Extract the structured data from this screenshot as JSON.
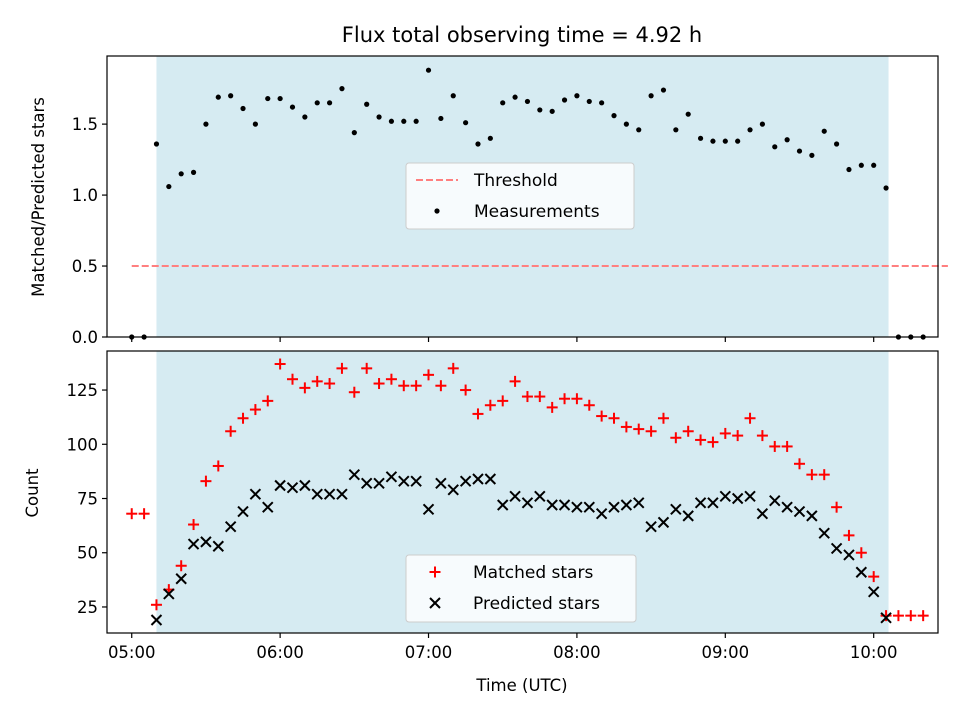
{
  "chart_data": [
    {
      "type": "scatter",
      "title": "Flux total observing time = 4.92 h",
      "ylabel": "Matched/Predicted stars",
      "xlabel": "",
      "xlim": [
        "04:50",
        "10:26"
      ],
      "ylim": [
        0,
        1.98
      ],
      "grid": false,
      "legend_placement": "center",
      "observing_window": [
        "05:10",
        "10:06"
      ],
      "yticks": [
        "0.0",
        "0.5",
        "1.0",
        "1.5"
      ],
      "series": [
        {
          "name": "Threshold",
          "style": "dashed-line",
          "color": "#ff7f7f",
          "x": [
            "05:00",
            "10:30"
          ],
          "y": [
            0.5,
            0.5
          ]
        },
        {
          "name": "Measurements",
          "style": "dot",
          "color": "#000000",
          "x": [
            "05:00",
            "05:05",
            "05:10",
            "05:15",
            "05:20",
            "05:25",
            "05:30",
            "05:35",
            "05:40",
            "05:45",
            "05:50",
            "05:55",
            "06:00",
            "06:05",
            "06:10",
            "06:15",
            "06:20",
            "06:25",
            "06:30",
            "06:35",
            "06:40",
            "06:45",
            "06:50",
            "06:55",
            "07:00",
            "07:05",
            "07:10",
            "07:15",
            "07:20",
            "07:25",
            "07:30",
            "07:35",
            "07:40",
            "07:45",
            "07:50",
            "07:55",
            "08:00",
            "08:05",
            "08:10",
            "08:15",
            "08:20",
            "08:25",
            "08:30",
            "08:35",
            "08:40",
            "08:45",
            "08:50",
            "08:55",
            "09:00",
            "09:05",
            "09:10",
            "09:15",
            "09:20",
            "09:25",
            "09:30",
            "09:35",
            "09:40",
            "09:45",
            "09:50",
            "09:55",
            "10:00",
            "10:05",
            "10:10",
            "10:15",
            "10:20"
          ],
          "y": [
            0.0,
            0.0,
            1.36,
            1.06,
            1.15,
            1.16,
            1.5,
            1.69,
            1.7,
            1.61,
            1.5,
            1.68,
            1.68,
            1.62,
            1.55,
            1.65,
            1.65,
            1.75,
            1.44,
            1.64,
            1.55,
            1.52,
            1.52,
            1.52,
            1.88,
            1.54,
            1.7,
            1.51,
            1.36,
            1.4,
            1.65,
            1.69,
            1.66,
            1.6,
            1.59,
            1.67,
            1.7,
            1.66,
            1.65,
            1.56,
            1.5,
            1.46,
            1.7,
            1.74,
            1.46,
            1.57,
            1.4,
            1.38,
            1.38,
            1.38,
            1.46,
            1.5,
            1.34,
            1.39,
            1.31,
            1.28,
            1.45,
            1.36,
            1.18,
            1.21,
            1.21,
            1.05,
            0.0,
            0.0,
            0.0
          ]
        }
      ]
    },
    {
      "type": "scatter",
      "title": "",
      "ylabel": "Count",
      "xlabel": "Time (UTC)",
      "xlim": [
        "04:50",
        "10:26"
      ],
      "ylim": [
        13,
        143
      ],
      "grid": false,
      "legend_placement": "bottom-center",
      "observing_window": [
        "05:10",
        "10:06"
      ],
      "yticks": [
        "25",
        "50",
        "75",
        "100",
        "125"
      ],
      "xticks": [
        "05:00",
        "06:00",
        "07:00",
        "08:00",
        "09:00",
        "10:00"
      ],
      "series": [
        {
          "name": "Matched stars",
          "marker": "+",
          "color": "#ff0000",
          "x": [
            "05:00",
            "05:05",
            "05:10",
            "05:15",
            "05:20",
            "05:25",
            "05:30",
            "05:35",
            "05:40",
            "05:45",
            "05:50",
            "05:55",
            "06:00",
            "06:05",
            "06:10",
            "06:15",
            "06:20",
            "06:25",
            "06:30",
            "06:35",
            "06:40",
            "06:45",
            "06:50",
            "06:55",
            "07:00",
            "07:05",
            "07:10",
            "07:15",
            "07:20",
            "07:25",
            "07:30",
            "07:35",
            "07:40",
            "07:45",
            "07:50",
            "07:55",
            "08:00",
            "08:05",
            "08:10",
            "08:15",
            "08:20",
            "08:25",
            "08:30",
            "08:35",
            "08:40",
            "08:45",
            "08:50",
            "08:55",
            "09:00",
            "09:05",
            "09:10",
            "09:15",
            "09:20",
            "09:25",
            "09:30",
            "09:35",
            "09:40",
            "09:45",
            "09:50",
            "09:55",
            "10:00",
            "10:05",
            "10:10",
            "10:15",
            "10:20"
          ],
          "y": [
            68,
            68,
            26,
            33,
            44,
            63,
            83,
            90,
            106,
            112,
            116,
            120,
            137,
            130,
            126,
            129,
            128,
            135,
            124,
            135,
            128,
            130,
            127,
            127,
            132,
            127,
            135,
            125,
            114,
            118,
            120,
            129,
            122,
            122,
            117,
            121,
            121,
            118,
            113,
            112,
            108,
            107,
            106,
            112,
            103,
            106,
            102,
            101,
            105,
            104,
            112,
            104,
            99,
            99,
            91,
            86,
            86,
            71,
            58,
            50,
            39,
            21,
            21,
            21,
            21
          ]
        },
        {
          "name": "Predicted stars",
          "marker": "x",
          "color": "#000000",
          "x": [
            "05:10",
            "05:15",
            "05:20",
            "05:25",
            "05:30",
            "05:35",
            "05:40",
            "05:45",
            "05:50",
            "05:55",
            "06:00",
            "06:05",
            "06:10",
            "06:15",
            "06:20",
            "06:25",
            "06:30",
            "06:35",
            "06:40",
            "06:45",
            "06:50",
            "06:55",
            "07:00",
            "07:05",
            "07:10",
            "07:15",
            "07:20",
            "07:25",
            "07:30",
            "07:35",
            "07:40",
            "07:45",
            "07:50",
            "07:55",
            "08:00",
            "08:05",
            "08:10",
            "08:15",
            "08:20",
            "08:25",
            "08:30",
            "08:35",
            "08:40",
            "08:45",
            "08:50",
            "08:55",
            "09:00",
            "09:05",
            "09:10",
            "09:15",
            "09:20",
            "09:25",
            "09:30",
            "09:35",
            "09:40",
            "09:45",
            "09:50",
            "09:55",
            "10:00",
            "10:05"
          ],
          "y": [
            19,
            31,
            38,
            54,
            55,
            53,
            62,
            69,
            77,
            71,
            81,
            80,
            81,
            77,
            77,
            77,
            86,
            82,
            82,
            85,
            83,
            83,
            70,
            82,
            79,
            83,
            84,
            84,
            72,
            76,
            73,
            76,
            72,
            72,
            71,
            71,
            68,
            71,
            72,
            73,
            62,
            64,
            70,
            67,
            73,
            73,
            76,
            75,
            76,
            68,
            74,
            71,
            69,
            67,
            59,
            52,
            49,
            41,
            32,
            20
          ]
        }
      ]
    }
  ]
}
